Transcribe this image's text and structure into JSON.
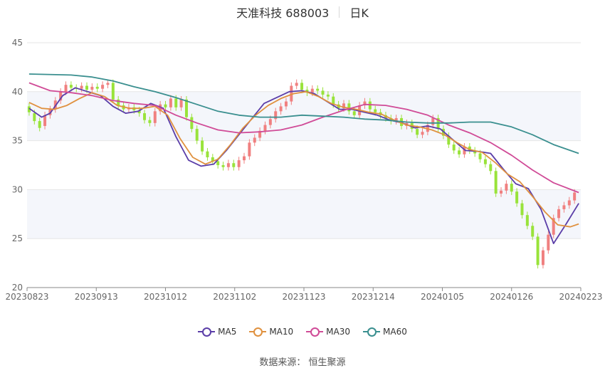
{
  "header": {
    "title": "天准科技 688003",
    "period": "日K"
  },
  "source": "数据来源： 恒生聚源",
  "colors": {
    "up": "#f08080",
    "down": "#99e33a",
    "grid": "#e6e6e6",
    "band": "#f4f6fb",
    "axis": "#666666"
  },
  "chart_data": {
    "type": "candlestick",
    "ylim": [
      20,
      45
    ],
    "yticks": [
      20,
      25,
      30,
      35,
      40,
      45
    ],
    "xticks": [
      "20230823",
      "20230913",
      "20231012",
      "20231102",
      "20231123",
      "20231214",
      "20240105",
      "20240126",
      "20240223"
    ],
    "grid": true,
    "legend_position": "bottom",
    "series": [
      {
        "name": "MA5",
        "color": "#5b3ea8",
        "points": [
          [
            0,
            38.3
          ],
          [
            3,
            37.4
          ],
          [
            5,
            37.8
          ],
          [
            8,
            39.6
          ],
          [
            11,
            40.4
          ],
          [
            14,
            40.0
          ],
          [
            17,
            39.6
          ],
          [
            20,
            38.5
          ],
          [
            23,
            37.8
          ],
          [
            26,
            38.0
          ],
          [
            29,
            38.8
          ],
          [
            32,
            38.3
          ],
          [
            35,
            35.4
          ],
          [
            38,
            33.0
          ],
          [
            41,
            32.4
          ],
          [
            44,
            32.6
          ],
          [
            47,
            34.0
          ],
          [
            50,
            35.6
          ],
          [
            53,
            37.2
          ],
          [
            56,
            38.8
          ],
          [
            59,
            39.4
          ],
          [
            62,
            40.0
          ],
          [
            65,
            40.1
          ],
          [
            68,
            39.8
          ],
          [
            71,
            39.0
          ],
          [
            74,
            38.2
          ],
          [
            77,
            38.2
          ],
          [
            80,
            37.9
          ],
          [
            83,
            37.6
          ],
          [
            86,
            37.1
          ],
          [
            89,
            36.8
          ],
          [
            92,
            36.3
          ],
          [
            95,
            36.5
          ],
          [
            98,
            36.2
          ],
          [
            101,
            35.1
          ],
          [
            104,
            34.0
          ],
          [
            107,
            33.9
          ],
          [
            110,
            33.7
          ],
          [
            113,
            32.1
          ],
          [
            116,
            30.6
          ],
          [
            119,
            30.1
          ],
          [
            122,
            28.0
          ],
          [
            125,
            24.5
          ],
          [
            128,
            26.5
          ],
          [
            131,
            28.6
          ]
        ]
      },
      {
        "name": "MA10",
        "color": "#e0913f",
        "points": [
          [
            0,
            38.9
          ],
          [
            3,
            38.3
          ],
          [
            6,
            38.2
          ],
          [
            9,
            38.6
          ],
          [
            12,
            39.3
          ],
          [
            15,
            39.9
          ],
          [
            18,
            39.5
          ],
          [
            21,
            38.6
          ],
          [
            24,
            38.3
          ],
          [
            27,
            38.3
          ],
          [
            30,
            38.5
          ],
          [
            33,
            37.6
          ],
          [
            36,
            35.2
          ],
          [
            39,
            33.3
          ],
          [
            42,
            32.6
          ],
          [
            45,
            33.1
          ],
          [
            48,
            34.6
          ],
          [
            51,
            36.3
          ],
          [
            54,
            37.6
          ],
          [
            57,
            38.6
          ],
          [
            60,
            39.3
          ],
          [
            63,
            39.8
          ],
          [
            66,
            40.0
          ],
          [
            69,
            39.5
          ],
          [
            72,
            38.8
          ],
          [
            75,
            38.4
          ],
          [
            78,
            38.2
          ],
          [
            81,
            37.9
          ],
          [
            84,
            37.7
          ],
          [
            87,
            37.1
          ],
          [
            90,
            36.6
          ],
          [
            93,
            36.4
          ],
          [
            96,
            36.1
          ],
          [
            99,
            35.6
          ],
          [
            102,
            34.8
          ],
          [
            105,
            34.1
          ],
          [
            108,
            33.8
          ],
          [
            111,
            32.8
          ],
          [
            114,
            31.6
          ],
          [
            117,
            30.8
          ],
          [
            120,
            29.3
          ],
          [
            123,
            27.7
          ],
          [
            126,
            26.4
          ],
          [
            129,
            26.2
          ],
          [
            131,
            26.5
          ]
        ]
      },
      {
        "name": "MA30",
        "color": "#d04b97",
        "points": [
          [
            0,
            40.9
          ],
          [
            5,
            40.1
          ],
          [
            10,
            39.9
          ],
          [
            15,
            39.6
          ],
          [
            20,
            39.1
          ],
          [
            25,
            38.8
          ],
          [
            30,
            38.6
          ],
          [
            35,
            37.6
          ],
          [
            40,
            36.8
          ],
          [
            45,
            36.1
          ],
          [
            50,
            35.8
          ],
          [
            55,
            35.9
          ],
          [
            60,
            36.1
          ],
          [
            65,
            36.6
          ],
          [
            70,
            37.4
          ],
          [
            75,
            38.1
          ],
          [
            80,
            38.7
          ],
          [
            85,
            38.6
          ],
          [
            90,
            38.2
          ],
          [
            95,
            37.6
          ],
          [
            100,
            36.6
          ],
          [
            105,
            35.8
          ],
          [
            110,
            34.8
          ],
          [
            115,
            33.5
          ],
          [
            120,
            32.0
          ],
          [
            125,
            30.7
          ],
          [
            131,
            29.7
          ]
        ]
      },
      {
        "name": "MA60",
        "color": "#3a8f8f",
        "points": [
          [
            0,
            41.8
          ],
          [
            10,
            41.7
          ],
          [
            15,
            41.5
          ],
          [
            20,
            41.1
          ],
          [
            25,
            40.5
          ],
          [
            30,
            40.0
          ],
          [
            35,
            39.4
          ],
          [
            40,
            38.7
          ],
          [
            45,
            38.0
          ],
          [
            50,
            37.6
          ],
          [
            55,
            37.4
          ],
          [
            60,
            37.4
          ],
          [
            65,
            37.6
          ],
          [
            70,
            37.5
          ],
          [
            75,
            37.4
          ],
          [
            80,
            37.2
          ],
          [
            85,
            37.1
          ],
          [
            90,
            36.9
          ],
          [
            95,
            36.8
          ],
          [
            100,
            36.8
          ],
          [
            105,
            36.9
          ],
          [
            110,
            36.9
          ],
          [
            115,
            36.4
          ],
          [
            120,
            35.6
          ],
          [
            125,
            34.6
          ],
          [
            131,
            33.7
          ]
        ]
      }
    ],
    "candles": [
      [
        38.5,
        37.9
      ],
      [
        37.8,
        37.0
      ],
      [
        37.0,
        36.3
      ],
      [
        36.5,
        37.6
      ],
      [
        37.6,
        38.2
      ],
      [
        38.2,
        39.1
      ],
      [
        39.1,
        40.0
      ],
      [
        40.0,
        40.7
      ],
      [
        40.7,
        40.4
      ],
      [
        40.4,
        40.3
      ],
      [
        40.3,
        40.6
      ],
      [
        40.6,
        40.2
      ],
      [
        40.2,
        40.5
      ],
      [
        40.5,
        40.3
      ],
      [
        40.3,
        40.7
      ],
      [
        40.7,
        40.9
      ],
      [
        40.9,
        39.2
      ],
      [
        39.2,
        38.6
      ],
      [
        38.6,
        38.2
      ],
      [
        38.2,
        38.4
      ],
      [
        38.4,
        38.1
      ],
      [
        38.1,
        37.8
      ],
      [
        37.8,
        37.1
      ],
      [
        37.1,
        36.8
      ],
      [
        36.8,
        38.0
      ],
      [
        38.0,
        38.7
      ],
      [
        38.7,
        38.4
      ],
      [
        38.4,
        39.3
      ],
      [
        39.3,
        38.4
      ],
      [
        38.4,
        39.2
      ],
      [
        39.2,
        37.4
      ],
      [
        37.4,
        36.2
      ],
      [
        36.2,
        35.0
      ],
      [
        35.0,
        33.9
      ],
      [
        33.9,
        33.3
      ],
      [
        33.3,
        32.9
      ],
      [
        32.9,
        32.5
      ],
      [
        32.5,
        32.3
      ],
      [
        32.3,
        32.7
      ],
      [
        32.7,
        32.3
      ],
      [
        32.3,
        33.0
      ],
      [
        33.0,
        33.4
      ],
      [
        33.4,
        34.8
      ],
      [
        34.8,
        35.3
      ],
      [
        35.3,
        36.0
      ],
      [
        36.0,
        36.6
      ],
      [
        36.6,
        37.2
      ],
      [
        37.2,
        38.0
      ],
      [
        38.0,
        38.5
      ],
      [
        38.5,
        39.0
      ],
      [
        39.0,
        40.6
      ],
      [
        40.6,
        40.9
      ],
      [
        40.9,
        40.2
      ],
      [
        40.2,
        39.9
      ],
      [
        39.9,
        40.3
      ],
      [
        40.3,
        40.1
      ],
      [
        40.1,
        39.7
      ],
      [
        39.7,
        39.5
      ],
      [
        39.5,
        38.7
      ],
      [
        38.7,
        38.3
      ],
      [
        38.3,
        38.8
      ],
      [
        38.8,
        38.0
      ],
      [
        38.0,
        37.6
      ],
      [
        37.6,
        38.6
      ],
      [
        38.6,
        39.0
      ],
      [
        39.0,
        38.2
      ],
      [
        38.2,
        37.9
      ],
      [
        37.9,
        37.6
      ],
      [
        37.6,
        37.3
      ],
      [
        37.3,
        37.0
      ],
      [
        37.0,
        37.3
      ],
      [
        37.3,
        36.5
      ],
      [
        36.5,
        36.8
      ],
      [
        36.8,
        36.2
      ],
      [
        36.2,
        35.6
      ],
      [
        35.6,
        35.9
      ],
      [
        35.9,
        36.6
      ],
      [
        36.6,
        37.3
      ],
      [
        37.3,
        36.2
      ],
      [
        36.2,
        35.5
      ],
      [
        35.5,
        34.6
      ],
      [
        34.6,
        34.0
      ],
      [
        34.0,
        33.6
      ],
      [
        33.6,
        34.4
      ],
      [
        34.4,
        34.0
      ],
      [
        34.0,
        33.7
      ],
      [
        33.7,
        33.1
      ],
      [
        33.1,
        32.6
      ],
      [
        32.6,
        31.9
      ],
      [
        31.9,
        29.6
      ],
      [
        29.6,
        29.9
      ],
      [
        29.9,
        30.6
      ],
      [
        30.6,
        29.8
      ],
      [
        29.8,
        28.6
      ],
      [
        28.6,
        27.4
      ],
      [
        27.4,
        26.3
      ],
      [
        26.3,
        25.2
      ],
      [
        25.2,
        22.3
      ],
      [
        22.3,
        23.8
      ],
      [
        23.8,
        25.4
      ],
      [
        25.4,
        27.1
      ],
      [
        27.1,
        28.0
      ],
      [
        28.0,
        28.4
      ],
      [
        28.4,
        28.9
      ],
      [
        28.9,
        29.7
      ]
    ]
  }
}
